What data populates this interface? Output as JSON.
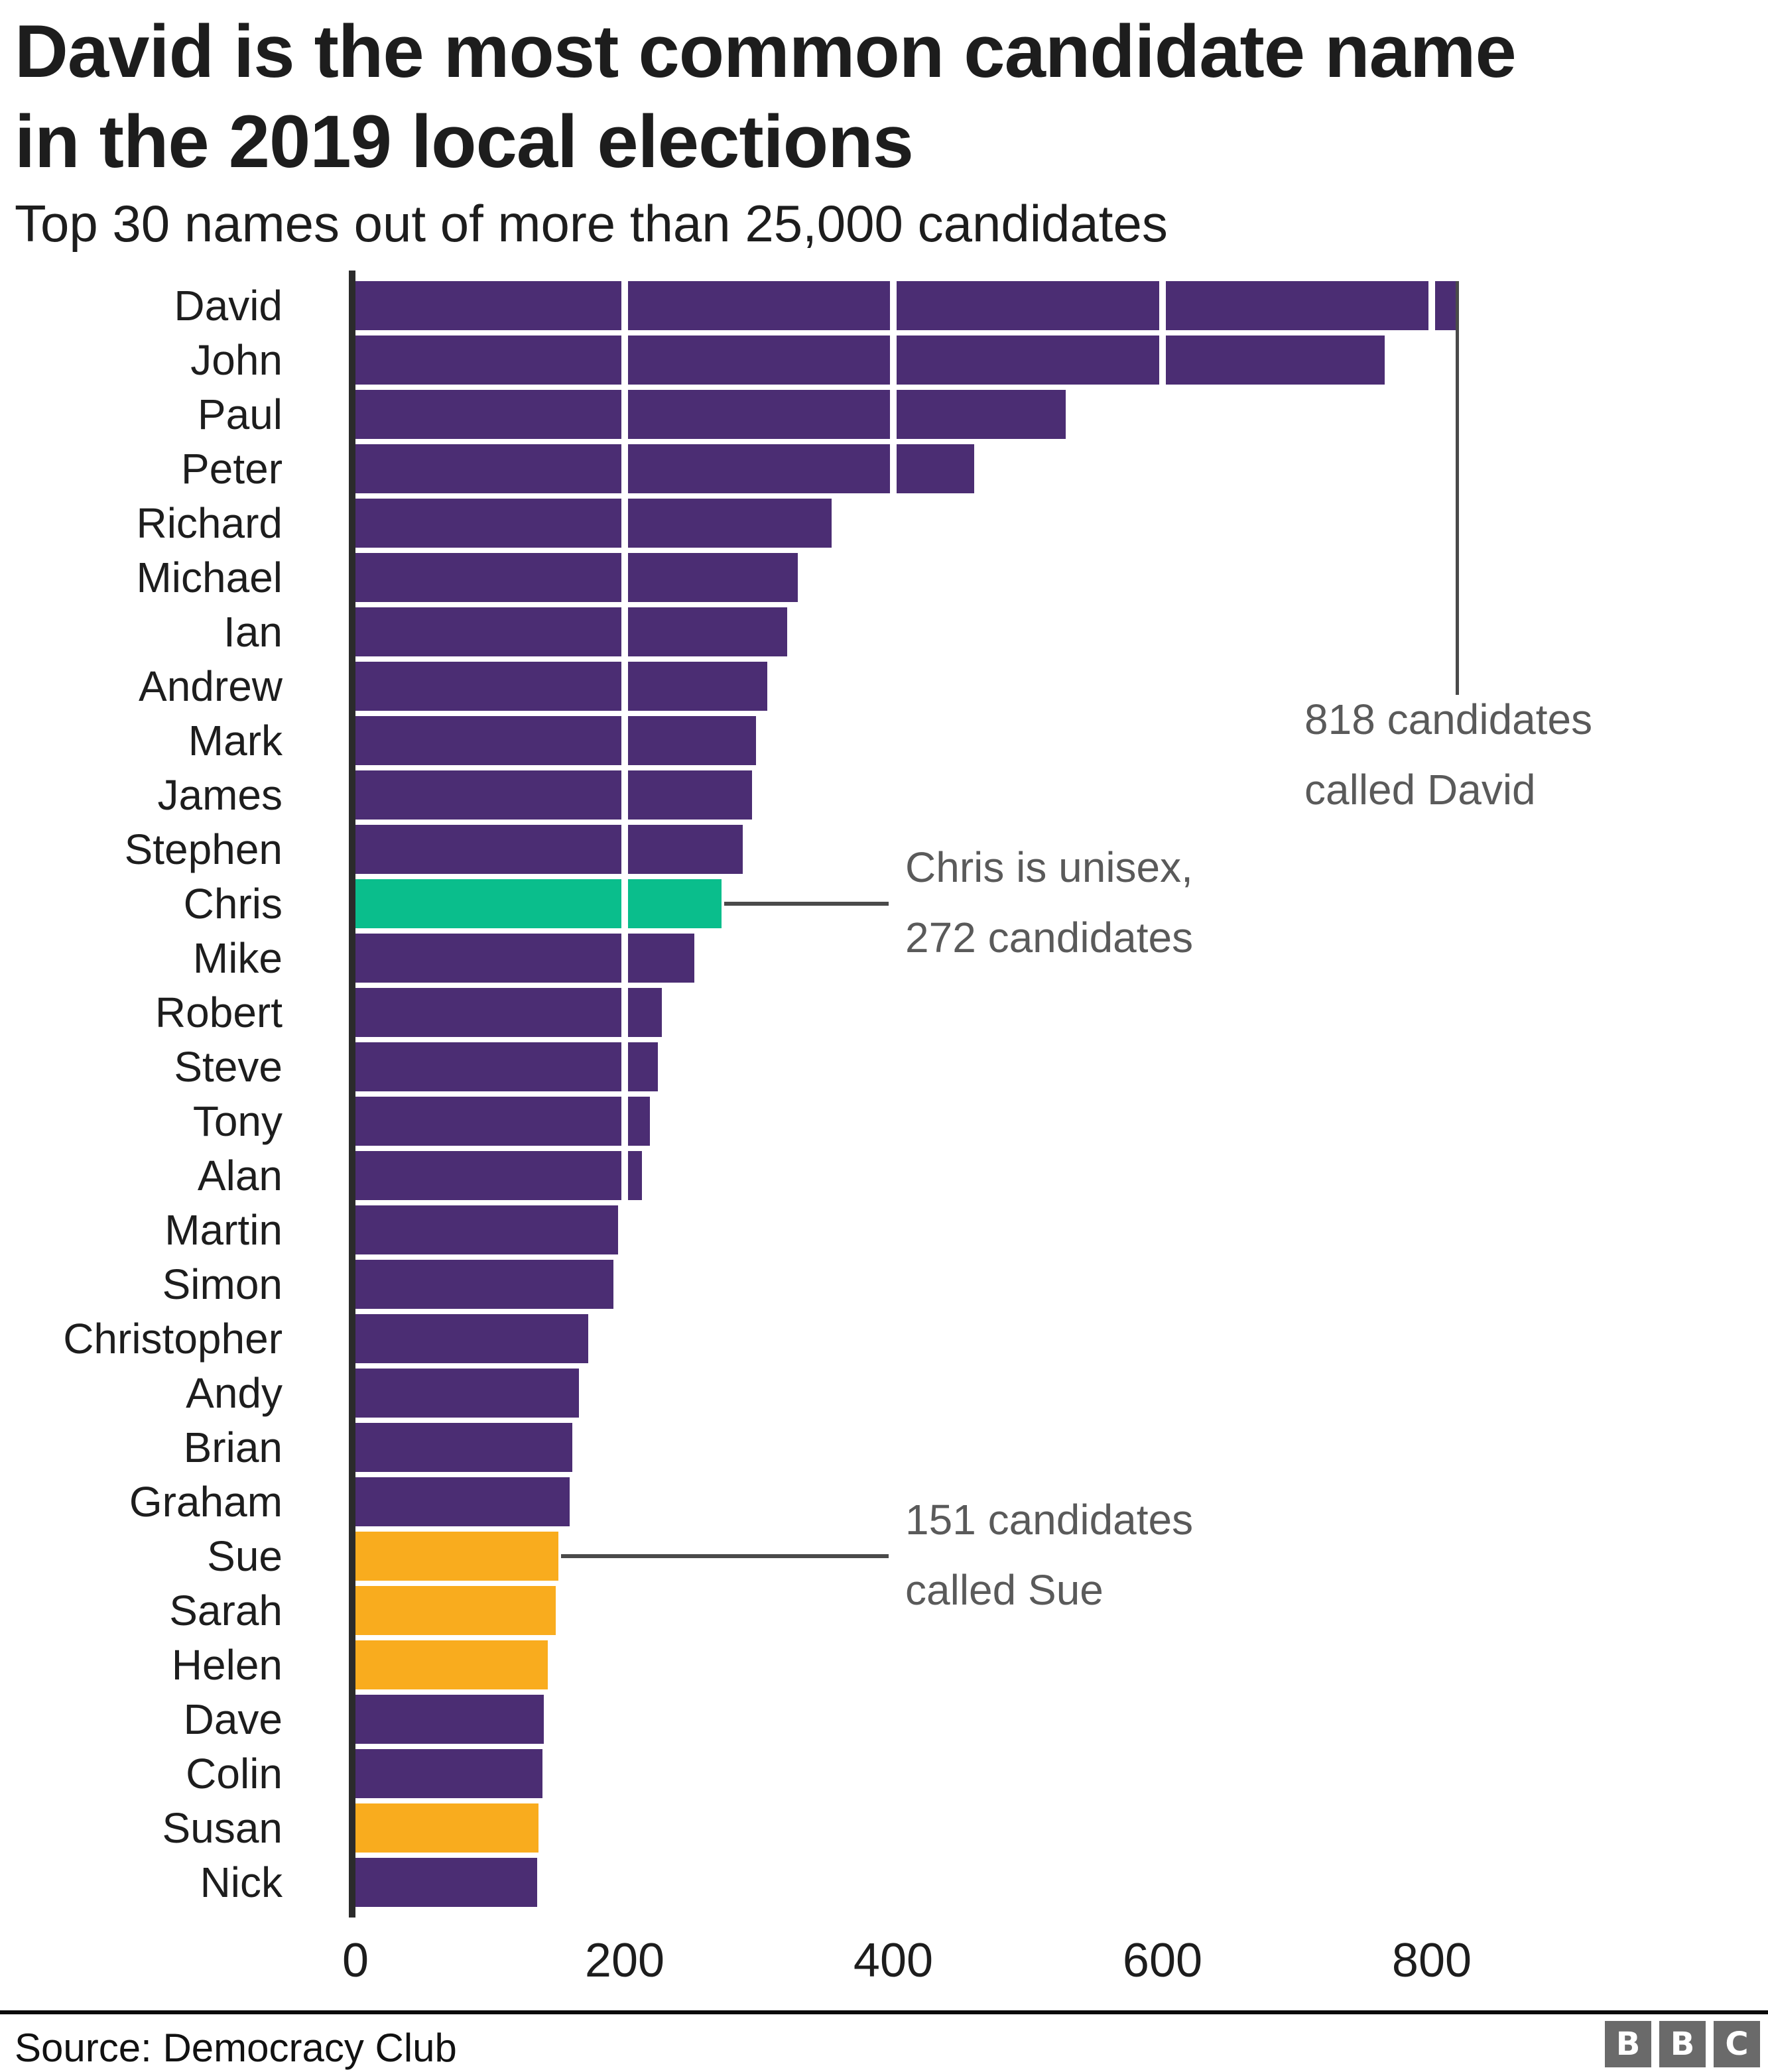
{
  "header": {
    "title": "David is the most common candidate name\nin the 2019 local elections",
    "subtitle": "Top 30 names out of more than 25,000 candidates"
  },
  "chart_data": {
    "type": "bar",
    "orientation": "horizontal",
    "title": "David is the most common candidate name in the 2019 local elections",
    "subtitle": "Top 30 names out of more than 25,000 candidates",
    "categories": [
      "David",
      "John",
      "Paul",
      "Peter",
      "Richard",
      "Michael",
      "Ian",
      "Andrew",
      "Mark",
      "James",
      "Stephen",
      "Chris",
      "Mike",
      "Robert",
      "Steve",
      "Tony",
      "Alan",
      "Martin",
      "Simon",
      "Christopher",
      "Andy",
      "Brian",
      "Graham",
      "Sue",
      "Sarah",
      "Helen",
      "Dave",
      "Colin",
      "Susan",
      "Nick"
    ],
    "values": [
      818,
      765,
      528,
      460,
      354,
      329,
      321,
      306,
      298,
      295,
      288,
      272,
      252,
      228,
      225,
      219,
      213,
      195,
      192,
      173,
      166,
      161,
      159,
      151,
      149,
      143,
      140,
      139,
      136,
      135
    ],
    "x_ticks": [
      0,
      200,
      400,
      600,
      800
    ],
    "xlim": [
      0,
      950
    ],
    "grid": "white vertical gridlines drawn over bars",
    "legend": "none",
    "highlight_green": [
      "Chris"
    ],
    "highlight_orange": [
      "Sue",
      "Sarah",
      "Helen",
      "Susan"
    ],
    "annotations": [
      {
        "target": "David",
        "value": 818,
        "text": "818 candidates\ncalled David",
        "style": "vertical-line"
      },
      {
        "target": "Chris",
        "value": 272,
        "text": "Chris is unisex,\n272 candidates",
        "style": "connector"
      },
      {
        "target": "Sue",
        "value": 151,
        "text": "151 candidates\ncalled Sue",
        "style": "connector"
      }
    ]
  },
  "colors": {
    "bar_default": "#4B2D73",
    "bar_green": "#0ABE8C",
    "bar_orange": "#F9AC1E",
    "axis_line": "#2b2b2b",
    "annotation_text": "#5a5a5a",
    "annotation_line": "#4a4a4a",
    "title_text": "#1d1d1d"
  },
  "footer": {
    "source": "Source: Democracy Club",
    "logo_letters": [
      "B",
      "B",
      "C"
    ]
  }
}
